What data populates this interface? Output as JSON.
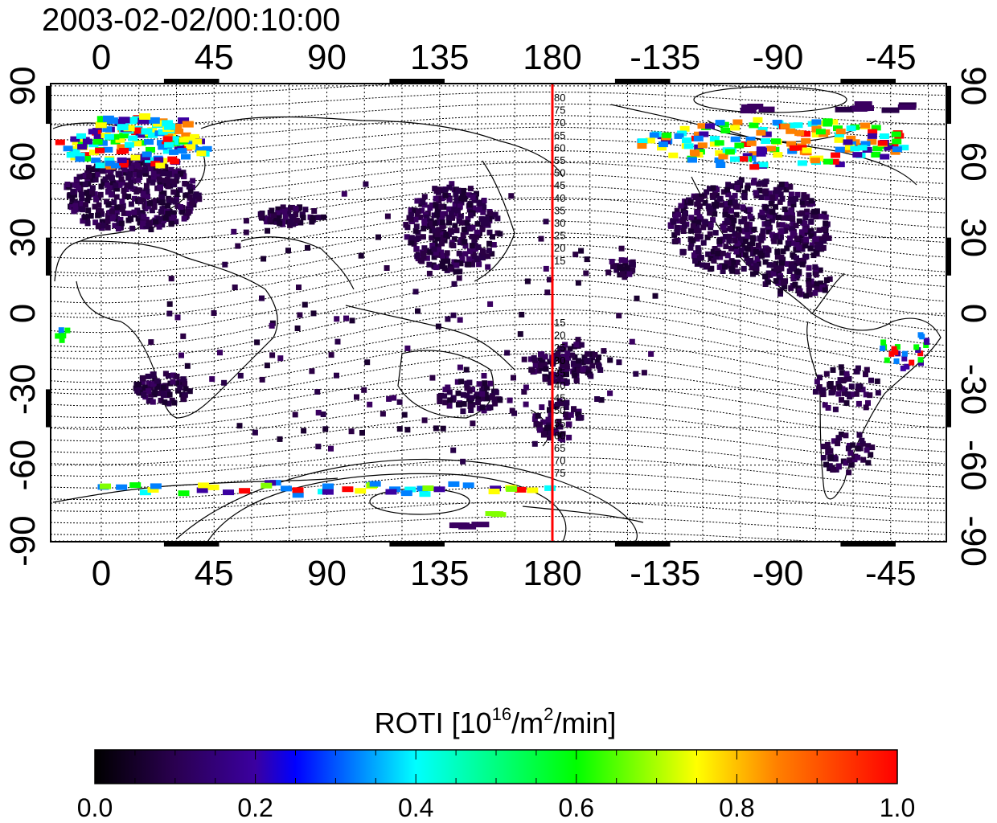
{
  "timestamp": "2003-02-02/00:10:00",
  "map": {
    "lon_ticks": [
      "0",
      "45",
      "90",
      "135",
      "180",
      "-135",
      "-90",
      "-45"
    ],
    "lat_ticks": [
      "90",
      "60",
      "30",
      "0",
      "-30",
      "-60",
      "-90"
    ],
    "terminator_meridian_lon": 180,
    "contour_labels_north": [
      "80",
      "75",
      "70",
      "65",
      "60",
      "55",
      "50",
      "45",
      "40",
      "35",
      "30",
      "25",
      "20",
      "15"
    ],
    "contour_labels_south": [
      "15",
      "20",
      "25",
      "30",
      "35",
      "40",
      "45",
      "50",
      "55",
      "60",
      "65",
      "70",
      "75"
    ],
    "colors": {
      "meridian_line": "#ff0000",
      "coastline": "#000000",
      "grid": "#000000"
    }
  },
  "colorbar": {
    "title_prefix": "ROTI  [10",
    "title_sup1": "16",
    "title_mid": "/m",
    "title_sup2": "2",
    "title_suffix": "/min]",
    "tick_labels": [
      "0.0",
      "0.2",
      "0.4",
      "0.6",
      "0.8",
      "1.0"
    ],
    "range": [
      0.0,
      1.0
    ],
    "colormap": [
      "#000000",
      "#3a0060",
      "#0000ff",
      "#00ffff",
      "#00ff00",
      "#ffff00",
      "#ff0000"
    ]
  }
}
